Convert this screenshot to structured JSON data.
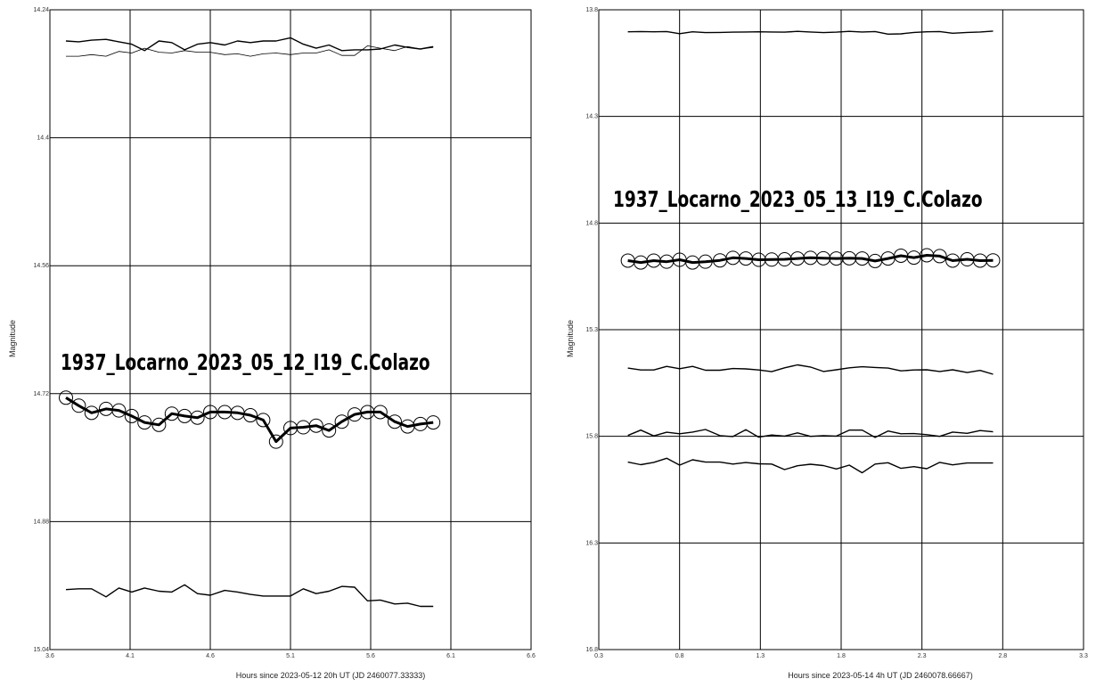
{
  "chart_data": [
    {
      "type": "line",
      "overlay_title": "1937_Locarno_2023_05_12_I19_C.Colazo",
      "xlabel": "Hours since 2023-05-12 20h UT (JD 2460077.33333)",
      "ylabel": "Magnitude",
      "xlim": [
        3.6,
        6.6
      ],
      "ylim": [
        14.24,
        15.04
      ],
      "y_inverted": true,
      "grid": true,
      "x_ticks": [
        3.6,
        4.1,
        4.6,
        5.1,
        5.6,
        6.1,
        6.6
      ],
      "y_ticks": [
        14.24,
        14.4,
        14.56,
        14.72,
        14.88,
        15.04
      ],
      "x_tick_labels": [
        "3.6",
        "4.1",
        "4.6",
        "5.1",
        "5.6",
        "6.1",
        "6.6"
      ],
      "y_tick_labels": [
        "14.24",
        "14.4",
        "14.56",
        "14.72",
        "14.88",
        "15.04"
      ],
      "series": [
        {
          "role": "target",
          "x": [
            3.7,
            3.78,
            3.86,
            3.95,
            4.03,
            4.11,
            4.19,
            4.28,
            4.36,
            4.44,
            4.52,
            4.6,
            4.69,
            4.77,
            4.85,
            4.93,
            5.01,
            5.1,
            5.18,
            5.26,
            5.34,
            5.42,
            5.5,
            5.58,
            5.66,
            5.75,
            5.83,
            5.91,
            5.99
          ],
          "y": [
            14.725,
            14.735,
            14.744,
            14.739,
            14.741,
            14.748,
            14.756,
            14.759,
            14.745,
            14.748,
            14.75,
            14.743,
            14.743,
            14.744,
            14.747,
            14.753,
            14.78,
            14.763,
            14.762,
            14.76,
            14.766,
            14.755,
            14.746,
            14.743,
            14.743,
            14.755,
            14.761,
            14.758,
            14.756
          ]
        },
        {
          "role": "comparison",
          "x": [
            3.7,
            3.78,
            3.86,
            3.95,
            4.03,
            4.11,
            4.19,
            4.28,
            4.36,
            4.44,
            4.52,
            4.6,
            4.69,
            4.77,
            4.85,
            4.93,
            5.01,
            5.1,
            5.18,
            5.26,
            5.34,
            5.42,
            5.5,
            5.58,
            5.66,
            5.75,
            5.83,
            5.91,
            5.99
          ],
          "y": [
            14.279,
            14.28,
            14.278,
            14.277,
            14.28,
            14.283,
            14.291,
            14.279,
            14.281,
            14.29,
            14.283,
            14.281,
            14.284,
            14.279,
            14.281,
            14.279,
            14.279,
            14.275,
            14.283,
            14.288,
            14.284,
            14.291,
            14.29,
            14.29,
            14.289,
            14.284,
            14.287,
            14.289,
            14.286
          ]
        },
        {
          "role": "check",
          "x": [
            3.7,
            3.78,
            3.86,
            3.95,
            4.03,
            4.11,
            4.19,
            4.28,
            4.36,
            4.44,
            4.52,
            4.6,
            4.69,
            4.77,
            4.85,
            4.93,
            5.01,
            5.1,
            5.18,
            5.26,
            5.34,
            5.42,
            5.5,
            5.58,
            5.66,
            5.75,
            5.83,
            5.91,
            5.99
          ],
          "y": [
            14.298,
            14.298,
            14.296,
            14.298,
            14.292,
            14.294,
            14.288,
            14.293,
            14.294,
            14.291,
            14.293,
            14.293,
            14.296,
            14.295,
            14.298,
            14.295,
            14.294,
            14.296,
            14.294,
            14.294,
            14.29,
            14.297,
            14.297,
            14.285,
            14.288,
            14.291,
            14.286,
            14.289,
            14.287
          ]
        },
        {
          "role": "variable-check",
          "x": [
            3.7,
            3.78,
            3.86,
            3.95,
            4.03,
            4.11,
            4.19,
            4.28,
            4.36,
            4.44,
            4.52,
            4.6,
            4.69,
            4.77,
            4.85,
            4.93,
            5.01,
            5.1,
            5.18,
            5.26,
            5.34,
            5.42,
            5.5,
            5.58,
            5.66,
            5.75,
            5.83,
            5.91,
            5.99
          ],
          "y": [
            14.965,
            14.964,
            14.964,
            14.974,
            14.963,
            14.968,
            14.963,
            14.967,
            14.968,
            14.959,
            14.97,
            14.972,
            14.966,
            14.968,
            14.971,
            14.973,
            14.973,
            14.973,
            14.964,
            14.97,
            14.967,
            14.961,
            14.962,
            14.979,
            14.978,
            14.983,
            14.982,
            14.986,
            14.986
          ]
        }
      ]
    },
    {
      "type": "line",
      "overlay_title": "1937_Locarno_2023_05_13_I19_C.Colazo",
      "xlabel": "Hours since 2023-05-14 4h UT (JD 2460078.66667)",
      "ylabel": "Magnitude",
      "xlim": [
        0.3,
        3.3
      ],
      "ylim": [
        13.8,
        16.8
      ],
      "y_inverted": true,
      "grid": true,
      "x_ticks": [
        0.3,
        0.8,
        1.3,
        1.8,
        2.3,
        2.8,
        3.3
      ],
      "y_ticks": [
        13.8,
        14.3,
        14.8,
        15.3,
        15.8,
        16.3,
        16.8
      ],
      "x_tick_labels": [
        "0.3",
        "0.8",
        "1.3",
        "1.8",
        "2.3",
        "2.8",
        "3.3"
      ],
      "y_tick_labels": [
        "13.8",
        "14.3",
        "14.8",
        "15.3",
        "15.8",
        "16.3",
        "16.8"
      ],
      "series": [
        {
          "role": "target",
          "x": [
            0.48,
            0.56,
            0.64,
            0.72,
            0.8,
            0.88,
            0.96,
            1.05,
            1.13,
            1.21,
            1.29,
            1.37,
            1.45,
            1.53,
            1.61,
            1.69,
            1.77,
            1.85,
            1.93,
            2.01,
            2.09,
            2.17,
            2.25,
            2.33,
            2.41,
            2.49,
            2.58,
            2.66,
            2.74
          ],
          "y": [
            14.976,
            14.985,
            14.976,
            14.981,
            14.972,
            14.985,
            14.981,
            14.975,
            14.963,
            14.966,
            14.972,
            14.971,
            14.97,
            14.966,
            14.963,
            14.965,
            14.966,
            14.965,
            14.966,
            14.978,
            14.966,
            14.953,
            14.962,
            14.951,
            14.955,
            14.976,
            14.97,
            14.976,
            14.975
          ]
        },
        {
          "role": "comparison-1",
          "x": [
            0.48,
            0.56,
            0.64,
            0.72,
            0.8,
            0.88,
            0.96,
            1.05,
            1.13,
            1.21,
            1.29,
            1.37,
            1.45,
            1.53,
            1.61,
            1.69,
            1.77,
            1.85,
            1.93,
            2.01,
            2.09,
            2.17,
            2.25,
            2.33,
            2.41,
            2.49,
            2.58,
            2.66,
            2.74
          ],
          "y": [
            13.903,
            13.902,
            13.903,
            13.902,
            13.912,
            13.903,
            13.907,
            13.906,
            13.905,
            13.904,
            13.903,
            13.904,
            13.905,
            13.901,
            13.904,
            13.907,
            13.905,
            13.901,
            13.904,
            13.902,
            13.914,
            13.913,
            13.906,
            13.903,
            13.902,
            13.91,
            13.906,
            13.904,
            13.9
          ]
        },
        {
          "role": "comparison-2",
          "x": [
            0.48,
            0.56,
            0.64,
            0.72,
            0.8,
            0.88,
            0.96,
            1.05,
            1.13,
            1.21,
            1.29,
            1.37,
            1.45,
            1.53,
            1.61,
            1.69,
            1.77,
            1.85,
            1.93,
            2.01,
            2.09,
            2.17,
            2.25,
            2.33,
            2.41,
            2.49,
            2.58,
            2.66,
            2.74
          ],
          "y": [
            15.48,
            15.489,
            15.489,
            15.472,
            15.483,
            15.472,
            15.49,
            15.49,
            15.482,
            15.484,
            15.489,
            15.497,
            15.479,
            15.465,
            15.475,
            15.496,
            15.488,
            15.479,
            15.474,
            15.477,
            15.48,
            15.493,
            15.489,
            15.488,
            15.496,
            15.488,
            15.501,
            15.491,
            15.509
          ]
        },
        {
          "role": "check-1",
          "x": [
            0.48,
            0.56,
            0.64,
            0.72,
            0.8,
            0.88,
            0.96,
            1.05,
            1.13,
            1.21,
            1.29,
            1.37,
            1.45,
            1.53,
            1.61,
            1.69,
            1.77,
            1.85,
            1.93,
            2.01,
            2.09,
            2.17,
            2.25,
            2.33,
            2.41,
            2.49,
            2.58,
            2.66,
            2.74
          ],
          "y": [
            15.796,
            15.771,
            15.798,
            15.781,
            15.788,
            15.78,
            15.768,
            15.797,
            15.801,
            15.769,
            15.804,
            15.794,
            15.799,
            15.784,
            15.8,
            15.797,
            15.799,
            15.771,
            15.771,
            15.805,
            15.775,
            15.788,
            15.787,
            15.792,
            15.8,
            15.78,
            15.786,
            15.773,
            15.779
          ]
        },
        {
          "role": "check-2",
          "x": [
            0.48,
            0.56,
            0.64,
            0.72,
            0.8,
            0.88,
            0.96,
            1.05,
            1.13,
            1.21,
            1.29,
            1.37,
            1.45,
            1.53,
            1.61,
            1.69,
            1.77,
            1.85,
            1.93,
            2.01,
            2.09,
            2.17,
            2.25,
            2.33,
            2.41,
            2.49,
            2.58,
            2.66,
            2.74
          ],
          "y": [
            15.921,
            15.933,
            15.922,
            15.903,
            15.935,
            15.91,
            15.921,
            15.921,
            15.93,
            15.923,
            15.929,
            15.93,
            15.956,
            15.938,
            15.931,
            15.937,
            15.953,
            15.935,
            15.971,
            15.93,
            15.924,
            15.95,
            15.942,
            15.952,
            15.922,
            15.934,
            15.925,
            15.925,
            15.925
          ]
        }
      ]
    }
  ]
}
